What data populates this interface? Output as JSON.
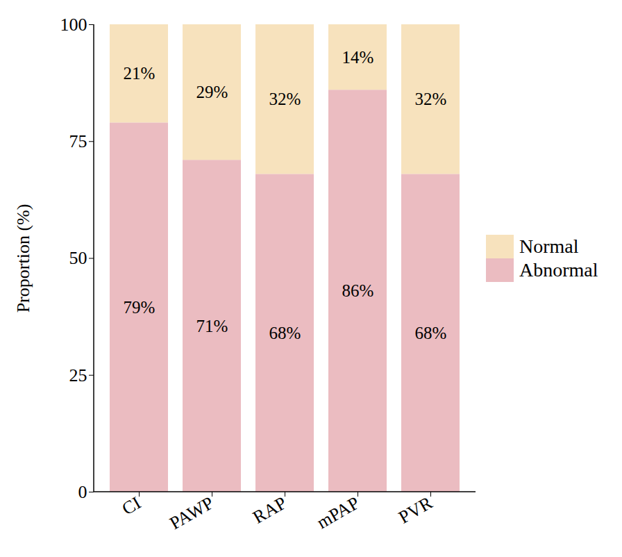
{
  "chart_data": {
    "type": "bar",
    "stacked": true,
    "data_labels": true,
    "legend": "right",
    "y_label": "Proportion (%)",
    "categories": [
      "CI",
      "PAWP",
      "RAP",
      "mPAP",
      "PVR"
    ],
    "series": [
      {
        "name": "Abnormal",
        "color": "#ebbcc1",
        "values": [
          79,
          71,
          68,
          86,
          68
        ],
        "value_labels": [
          "79%",
          "71%",
          "68%",
          "86%",
          "68%"
        ]
      },
      {
        "name": "Normal",
        "color": "#f7e2bd",
        "values": [
          21,
          29,
          32,
          14,
          32
        ],
        "value_labels": [
          "21%",
          "29%",
          "32%",
          "14%",
          "32%"
        ]
      }
    ],
    "ylim": [
      0,
      100
    ],
    "yticks": [
      0,
      25,
      50,
      75,
      100
    ],
    "grid": false
  }
}
